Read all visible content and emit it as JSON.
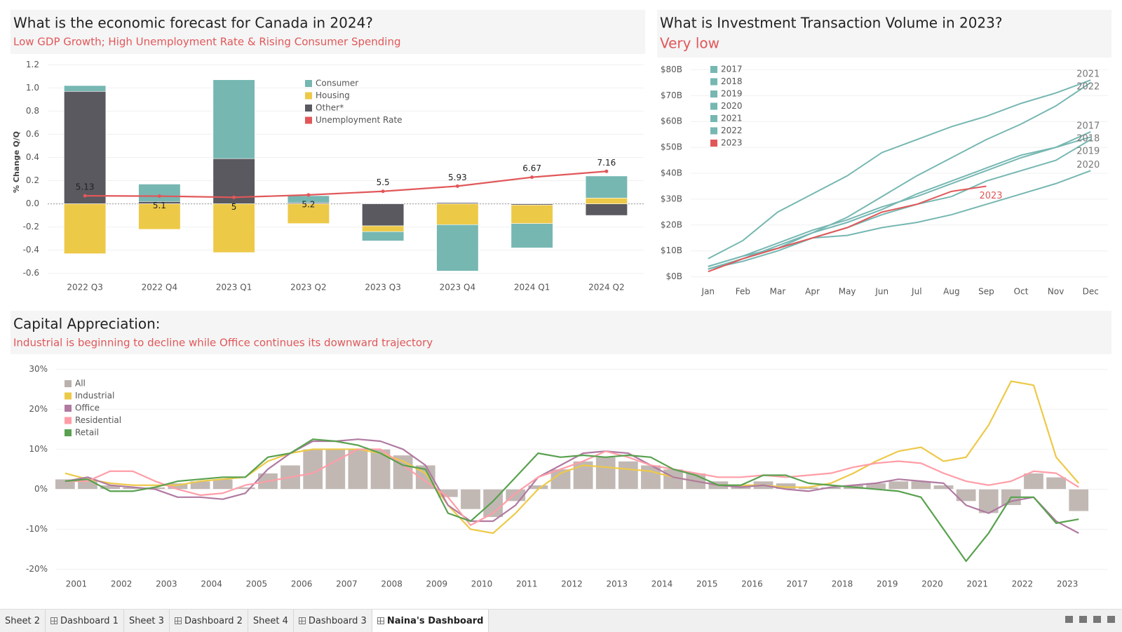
{
  "chart_data": [
    {
      "type": "bar",
      "title": "What is the economic forecast for Canada in 2024?",
      "subtitle": "Low GDP Growth; High Unemployment Rate & Rising Consumer Spending",
      "y_label": "% Change Q/Q",
      "categories": [
        "2022 Q3",
        "2022 Q4",
        "2023 Q1",
        "2023 Q2",
        "2023 Q3",
        "2023 Q4",
        "2024 Q1",
        "2024 Q2"
      ],
      "series": [
        {
          "name": "Consumer",
          "color": "#76b7b2",
          "values": [
            0.05,
            0.15,
            0.68,
            0.06,
            -0.08,
            -0.4,
            -0.21,
            0.19
          ]
        },
        {
          "name": "Housing",
          "color": "#edc948",
          "values": [
            -0.43,
            -0.22,
            -0.42,
            -0.17,
            -0.05,
            -0.18,
            -0.16,
            0.05
          ]
        },
        {
          "name": "Other*",
          "color": "#59595f",
          "values": [
            0.97,
            0.02,
            0.39,
            0.01,
            -0.19,
            0.01,
            -0.01,
            -0.1
          ]
        },
        {
          "name": "Unemployment Rate",
          "color": "#e15759",
          "type": "line",
          "axis": "y2",
          "values": [
            5.13,
            5.1,
            5,
            5.2,
            5.5,
            5.93,
            6.67,
            7.16
          ]
        }
      ],
      "ylim": [
        -0.65,
        1.25
      ],
      "yticks": [
        -0.6,
        -0.4,
        -0.2,
        {
          "value": 0,
          "label": "0.0"
        },
        0.2,
        0.4,
        0.6,
        0.8,
        {
          "value": 1,
          "label": "1.0"
        },
        1.2
      ],
      "y2lim": [
        -1.8,
        16.5
      ],
      "grid": true,
      "legend": "top-right"
    },
    {
      "type": "line",
      "title": "What is Investment Transaction Volume in 2023?",
      "subtitle": "Very low",
      "categories": [
        "Jan",
        "Feb",
        "Mar",
        "Apr",
        "May",
        "Jun",
        "Jul",
        "Aug",
        "Sep",
        "Oct",
        "Nov",
        "Dec"
      ],
      "series": [
        {
          "name": "2017",
          "color": "#76b7b2",
          "values": [
            4,
            8,
            13,
            18,
            22,
            27,
            31,
            36,
            41,
            46,
            50,
            56
          ]
        },
        {
          "name": "2018",
          "color": "#76b7b2",
          "values": [
            3,
            7,
            12,
            17,
            21,
            26,
            32,
            37,
            42,
            47,
            50,
            54
          ]
        },
        {
          "name": "2019",
          "color": "#76b7b2",
          "values": [
            3,
            6,
            10,
            15,
            19,
            24,
            28,
            31,
            37,
            41,
            45,
            53
          ]
        },
        {
          "name": "2020",
          "color": "#76b7b2",
          "values": [
            4,
            8,
            11,
            15,
            16,
            19,
            21,
            24,
            28,
            32,
            36,
            41
          ]
        },
        {
          "name": "2021",
          "color": "#76b7b2",
          "values": [
            7,
            14,
            25,
            32,
            39,
            48,
            53,
            58,
            62,
            67,
            71,
            76
          ]
        },
        {
          "name": "2022",
          "color": "#76b7b2",
          "values": [
            3,
            7,
            11,
            17,
            23,
            31,
            39,
            46,
            53,
            59,
            66,
            75
          ]
        },
        {
          "name": "2023",
          "color": "#e15759",
          "values": [
            2,
            7,
            11,
            15,
            19,
            25,
            28,
            33,
            35,
            null,
            null,
            null
          ]
        }
      ],
      "ylim": [
        -2,
        82
      ],
      "yticks": [
        {
          "value": 0,
          "label": "$0B"
        },
        {
          "value": 10,
          "label": "$10B"
        },
        {
          "value": 20,
          "label": "$20B"
        },
        {
          "value": 30,
          "label": "$30B"
        },
        {
          "value": 40,
          "label": "$40B"
        },
        {
          "value": 50,
          "label": "$50B"
        },
        {
          "value": 60,
          "label": "$60B"
        },
        {
          "value": 70,
          "label": "$70B"
        },
        {
          "value": 80,
          "label": "$80B"
        }
      ],
      "grid": true,
      "legend": "top-left"
    },
    {
      "type": "combo",
      "title": "Capital Appreciation:",
      "subtitle": "Industrial is beginning to decline while Office continues its downward trajectory",
      "x": [
        2000.75,
        2001.25,
        2001.75,
        2002.25,
        2002.75,
        2003.25,
        2003.75,
        2004.25,
        2004.75,
        2005.25,
        2005.75,
        2006.25,
        2006.75,
        2007.25,
        2007.75,
        2008.25,
        2008.75,
        2009.25,
        2009.75,
        2010.25,
        2010.75,
        2011.25,
        2011.75,
        2012.25,
        2012.75,
        2013.25,
        2013.75,
        2014.25,
        2014.75,
        2015.25,
        2015.75,
        2016.25,
        2016.75,
        2017.25,
        2017.75,
        2018.25,
        2018.75,
        2019.25,
        2019.75,
        2020.25,
        2020.75,
        2021.25,
        2021.75,
        2022.25,
        2022.75,
        2023.25
      ],
      "series": [
        {
          "name": "All",
          "color": "#bab0ac",
          "type": "bar",
          "values": [
            2.5,
            2.5,
            1,
            0.5,
            0.5,
            1.5,
            2,
            2.5,
            0.5,
            4,
            6,
            10,
            10,
            10,
            10,
            8.5,
            6,
            -2,
            -5,
            -7,
            -3,
            1,
            5,
            7,
            8,
            7,
            6,
            5,
            4,
            2,
            1,
            2,
            1.5,
            0.5,
            0.5,
            1,
            1.5,
            2,
            2,
            1,
            -3,
            -6,
            -4,
            4,
            3,
            -5.5
          ]
        },
        {
          "name": "Industrial",
          "color": "#edc948",
          "type": "line",
          "values": [
            4,
            2.5,
            1.5,
            1,
            1,
            1,
            2,
            2.5,
            3,
            7,
            9,
            10,
            10,
            10,
            9,
            7,
            4,
            -4,
            -10,
            -11,
            -6,
            0,
            4,
            6,
            5.5,
            5,
            4.5,
            3,
            2,
            1,
            1,
            1,
            0.5,
            0.5,
            1.5,
            4,
            7,
            9.5,
            10.5,
            7,
            8,
            16,
            27,
            26,
            8,
            1.5
          ]
        },
        {
          "name": "Office",
          "color": "#b07aa1",
          "type": "line",
          "values": [
            2,
            3,
            1,
            0.5,
            0,
            -2,
            -2,
            -2.5,
            -1,
            5,
            9,
            12,
            12,
            12.5,
            12,
            10,
            6,
            -4,
            -8,
            -8,
            -4,
            3,
            6,
            9,
            9.5,
            9,
            6,
            3,
            2,
            1,
            0.5,
            1,
            0,
            -0.5,
            0.5,
            1,
            1.5,
            2.5,
            2,
            1.5,
            -4,
            -6,
            -3,
            -2,
            -8,
            -11
          ]
        },
        {
          "name": "Residential",
          "color": "#ff9da7",
          "type": "line",
          "values": [
            2,
            2,
            4.5,
            4.5,
            2,
            0,
            -1.5,
            -1,
            1,
            2,
            3,
            4,
            7,
            10,
            10,
            6,
            2,
            -2,
            -9,
            -6,
            -1,
            3,
            5,
            7,
            9.5,
            8,
            6,
            5,
            4,
            3,
            3,
            3.5,
            3,
            3.5,
            4,
            5.5,
            6.5,
            7,
            6.5,
            4,
            2,
            1,
            2,
            4.5,
            4,
            0.5
          ]
        },
        {
          "name": "Retail",
          "color": "#59a14f",
          "type": "line",
          "values": [
            2,
            2.5,
            -0.5,
            -0.5,
            0.5,
            2,
            2.5,
            3,
            3,
            8,
            9,
            12.5,
            12,
            11,
            9,
            6,
            5,
            -6,
            -8,
            -3,
            3,
            9,
            8,
            8.5,
            8,
            8.5,
            8,
            5,
            3.5,
            1,
            1,
            3.5,
            3.5,
            1.5,
            1,
            0.5,
            0,
            -0.5,
            -2,
            -10,
            -18,
            -11,
            -2,
            -2,
            -8.5,
            -7.5
          ]
        }
      ],
      "xlim": [
        2000.55,
        2023.9
      ],
      "xticks": [
        2001,
        2002,
        2003,
        2004,
        2005,
        2006,
        2007,
        2008,
        2009,
        2010,
        2011,
        2012,
        2013,
        2014,
        2015,
        2016,
        2017,
        2018,
        2019,
        2020,
        2021,
        2022,
        2023
      ],
      "ylim": [
        -21.5,
        32
      ],
      "yticks": [
        {
          "value": -20,
          "label": "-20%"
        },
        {
          "value": -10,
          "label": "-10%"
        },
        {
          "value": 0,
          "label": "0%"
        },
        {
          "value": 10,
          "label": "10%"
        },
        {
          "value": 20,
          "label": "20%"
        },
        {
          "value": 30,
          "label": "30%"
        }
      ],
      "grid": true,
      "legend": "top-left"
    }
  ],
  "tabs": [
    "Sheet 2",
    "Dashboard 1",
    "Sheet 3",
    "Dashboard 2",
    "Sheet 4",
    "Dashboard 3",
    "Naina's Dashboard"
  ],
  "active_tab": 6
}
